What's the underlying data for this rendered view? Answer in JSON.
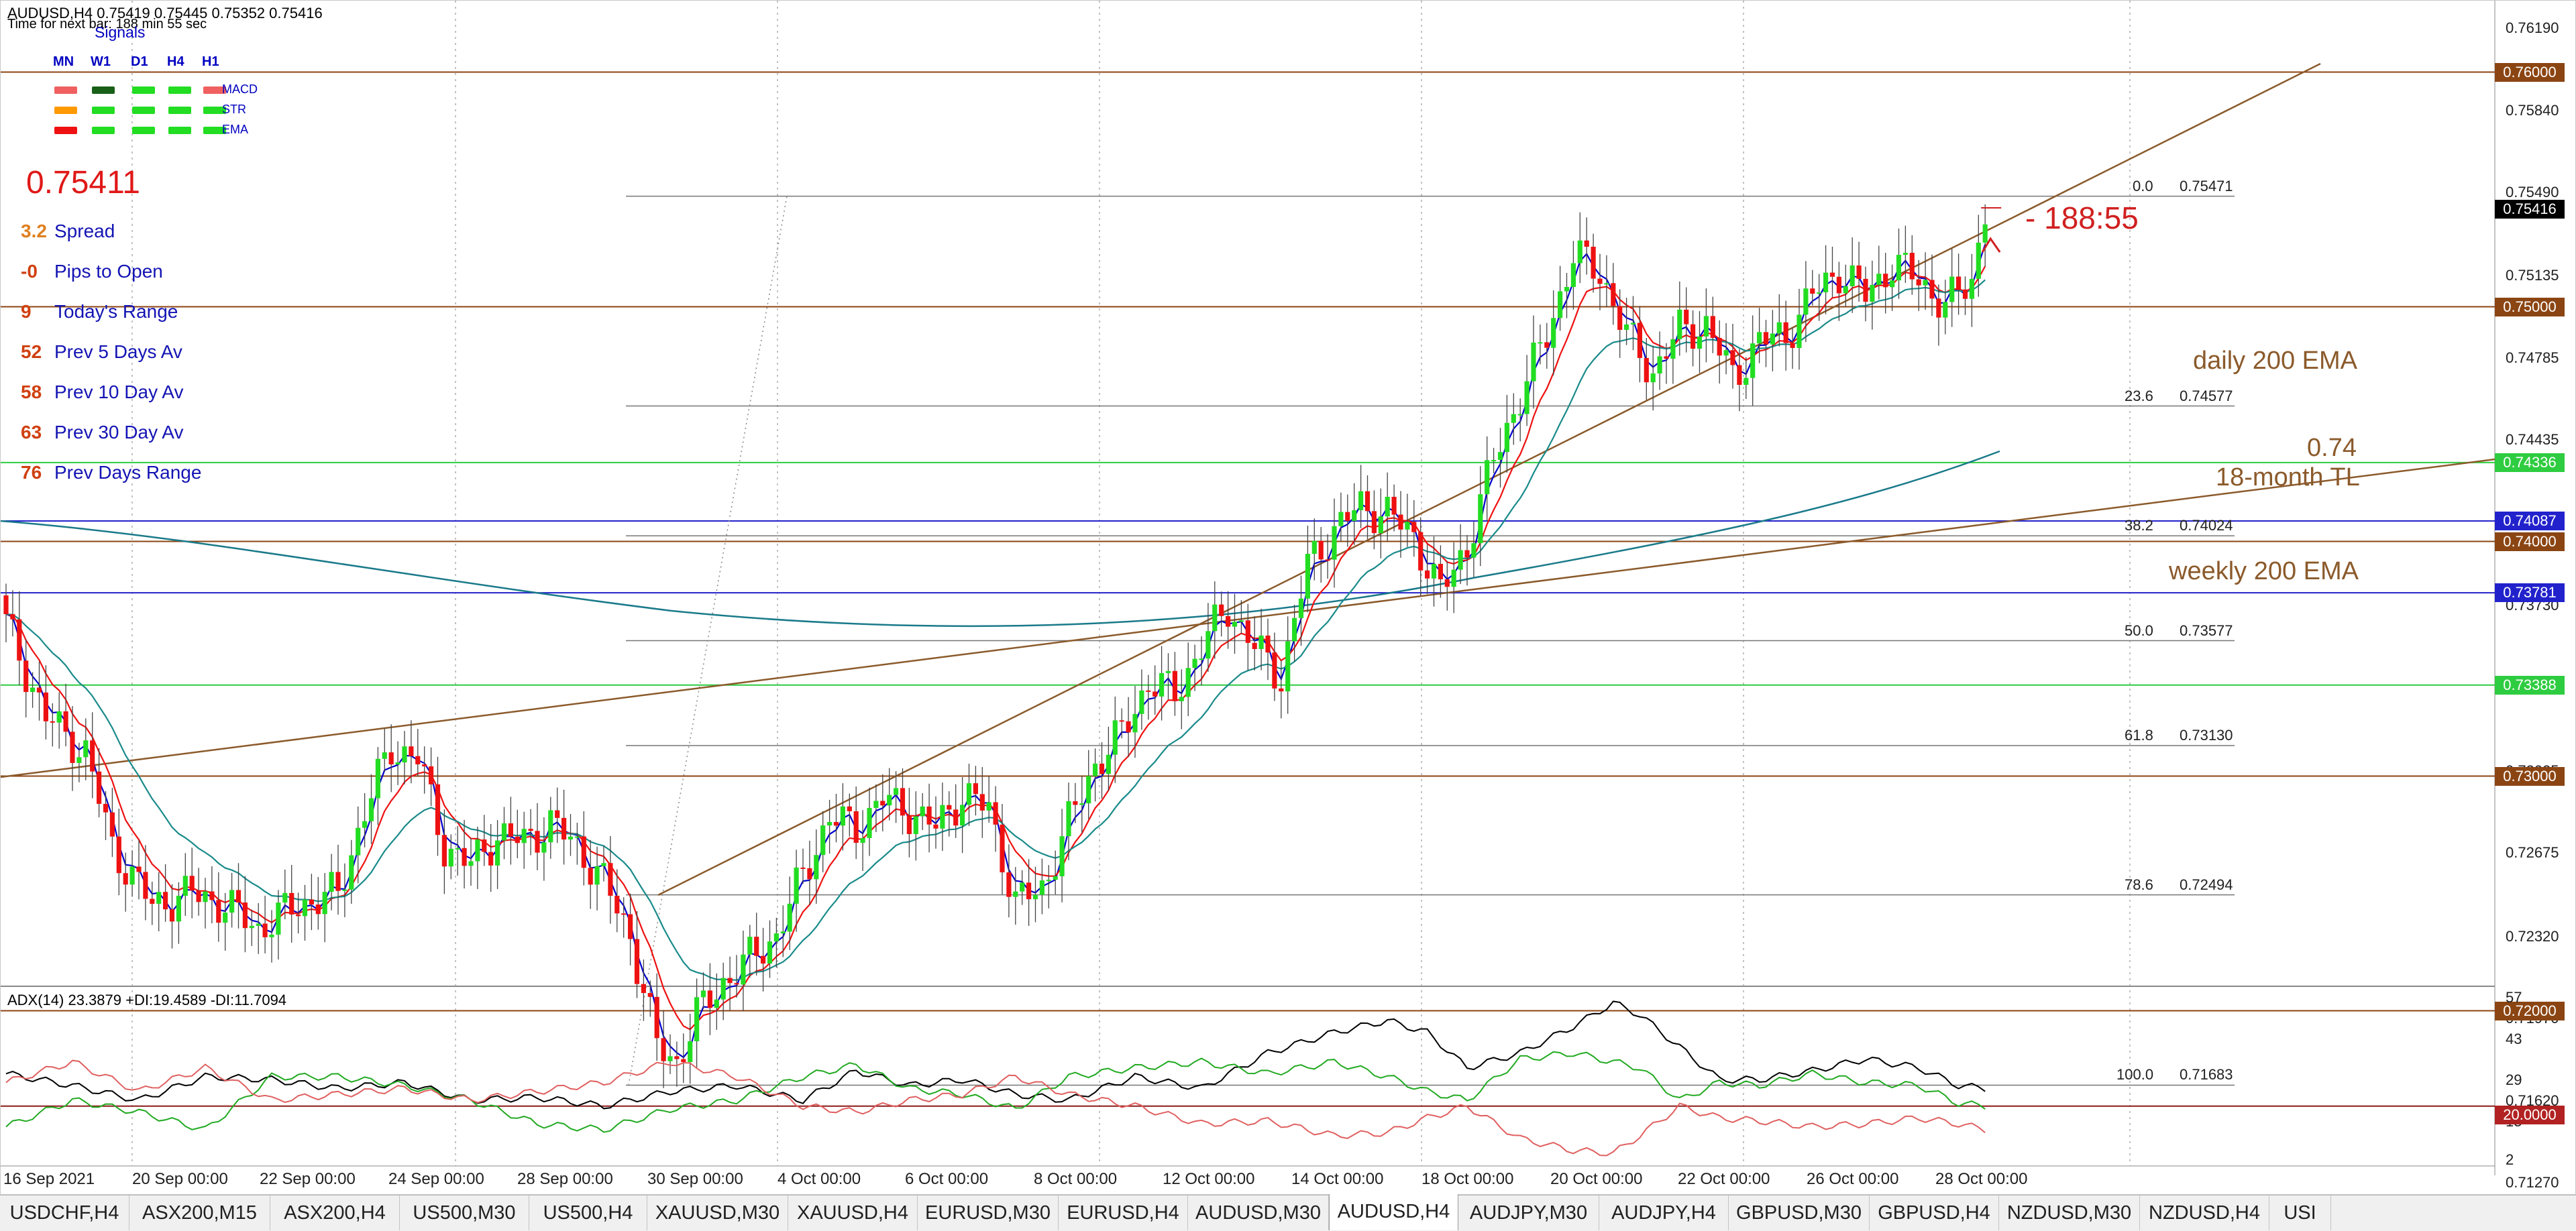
{
  "header": {
    "symbol_line": "AUDUSD,H4  0.75419 0.75445 0.75352 0.75416",
    "timer_line": "Time for next bar: 188 min 55 sec"
  },
  "signals": {
    "title": "Signals",
    "timeframes": [
      "MN",
      "W1",
      "D1",
      "H4",
      "H1"
    ],
    "rows": [
      {
        "name": "MACD",
        "colors": [
          "#f06060",
          "#186018",
          "#22dd22",
          "#22dd22",
          "#f06060"
        ]
      },
      {
        "name": "STR",
        "colors": [
          "#ff9900",
          "#22dd22",
          "#22dd22",
          "#22dd22",
          "#22dd22"
        ]
      },
      {
        "name": "EMA",
        "colors": [
          "#ee1111",
          "#22dd22",
          "#22dd22",
          "#22dd22",
          "#22dd22"
        ]
      }
    ]
  },
  "info_panel": {
    "current_price": "0.75411",
    "rows": [
      {
        "value": "3.2",
        "label": "Spread",
        "color": "#e08020"
      },
      {
        "value": "-0",
        "label": "Pips to Open",
        "color": "#d04010"
      },
      {
        "value": "9",
        "label": "Today's Range",
        "color": "#d04010"
      },
      {
        "value": "52",
        "label": "Prev 5 Days Av",
        "color": "#d04010"
      },
      {
        "value": "58",
        "label": "Prev 10 Day Av",
        "color": "#d04010"
      },
      {
        "value": "63",
        "label": "Prev 30 Day Av",
        "color": "#d04010"
      },
      {
        "value": "76",
        "label": "Prev Days Range",
        "color": "#d04010"
      }
    ]
  },
  "annotations": {
    "timer": "188:55",
    "daily_ema": "daily 200 EMA",
    "level_074": "0.74",
    "trendline": "18-month TL",
    "weekly_ema": "weekly 200 EMA"
  },
  "price_axis": {
    "ticks": [
      "0.76190",
      "0.75840",
      "0.75490",
      "0.75135",
      "0.74785",
      "0.74435",
      "0.74080",
      "0.73730",
      "0.73380",
      "0.73025",
      "0.72675",
      "0.72320",
      "0.71970",
      "0.71620",
      "0.71270"
    ],
    "badges": [
      {
        "text": "0.76000",
        "price": 0.76,
        "color": "#8b4513"
      },
      {
        "text": "0.75416",
        "price": 0.75416,
        "color": "#000000"
      },
      {
        "text": "0.75000",
        "price": 0.75,
        "color": "#8b4513"
      },
      {
        "text": "0.74336",
        "price": 0.74336,
        "color": "#2ecc40"
      },
      {
        "text": "0.74087",
        "price": 0.74087,
        "color": "#2222cc"
      },
      {
        "text": "0.74000",
        "price": 0.74,
        "color": "#8b4513"
      },
      {
        "text": "0.73781",
        "price": 0.73781,
        "color": "#2222cc"
      },
      {
        "text": "0.73388",
        "price": 0.73388,
        "color": "#2ecc40"
      },
      {
        "text": "0.73000",
        "price": 0.73,
        "color": "#8b4513"
      },
      {
        "text": "0.72000",
        "price": 0.72,
        "color": "#8b4513"
      }
    ]
  },
  "fibonacci": [
    {
      "level": "0.0",
      "price": "0.75471"
    },
    {
      "level": "23.6",
      "price": "0.74577"
    },
    {
      "level": "38.2",
      "price": "0.74024"
    },
    {
      "level": "50.0",
      "price": "0.73577"
    },
    {
      "level": "61.8",
      "price": "0.73130"
    },
    {
      "level": "78.6",
      "price": "0.72494"
    },
    {
      "level": "100.0",
      "price": "0.71683"
    }
  ],
  "time_axis": [
    "16 Sep 2021",
    "20 Sep 00:00",
    "22 Sep 00:00",
    "24 Sep 00:00",
    "28 Sep 00:00",
    "30 Sep 00:00",
    "4 Oct 00:00",
    "6 Oct 00:00",
    "8 Oct 00:00",
    "12 Oct 00:00",
    "14 Oct 00:00",
    "18 Oct 00:00",
    "20 Oct 00:00",
    "22 Oct 00:00",
    "26 Oct 00:00",
    "28 Oct 00:00"
  ],
  "adx_panel": {
    "label": "ADX(14) 23.3879 +DI:19.4589 -DI:11.7094",
    "ticks": [
      "57",
      "43",
      "29",
      "15",
      "2"
    ],
    "level_badge": "20.0000",
    "level_value": 20
  },
  "tabs": [
    {
      "label": "USDCHF,H4",
      "active": false
    },
    {
      "label": "ASX200,M15",
      "active": false
    },
    {
      "label": "ASX200,H4",
      "active": false
    },
    {
      "label": "US500,M30",
      "active": false
    },
    {
      "label": "US500,H4",
      "active": false
    },
    {
      "label": "XAUUSD,M30",
      "active": false
    },
    {
      "label": "XAUUSD,H4",
      "active": false
    },
    {
      "label": "EURUSD,M30",
      "active": false
    },
    {
      "label": "EURUSD,H4",
      "active": false
    },
    {
      "label": "AUDUSD,M30",
      "active": false
    },
    {
      "label": "AUDUSD,H4",
      "active": true
    },
    {
      "label": "AUDJPY,M30",
      "active": false
    },
    {
      "label": "AUDJPY,H4",
      "active": false
    },
    {
      "label": "GBPUSD,M30",
      "active": false
    },
    {
      "label": "GBPUSD,H4",
      "active": false
    },
    {
      "label": "NZDUSD,M30",
      "active": false
    },
    {
      "label": "NZDUSD,H4",
      "active": false
    },
    {
      "label": "USI",
      "active": false
    }
  ],
  "colors": {
    "bull_candle": "#22dd22",
    "bear_candle": "#ee1111",
    "fast_ma": "#0000cc",
    "mid_ma": "#ee1111",
    "slow_ma": "#1a8a8a",
    "ema200": "#1a7a8a",
    "trendline": "#8b5a2b",
    "adx_line": "#000000",
    "plus_di": "#22aa22",
    "minus_di": "#e06060"
  },
  "chart_data": {
    "type": "candlestick",
    "symbol": "AUDUSD",
    "timeframe": "H4",
    "ylim": [
      0.711,
      0.763
    ],
    "close_path": [
      [
        0,
        0.7365
      ],
      [
        6,
        0.7325
      ],
      [
        12,
        0.731
      ],
      [
        16,
        0.727
      ],
      [
        22,
        0.7245
      ],
      [
        28,
        0.725
      ],
      [
        33,
        0.7245
      ],
      [
        38,
        0.7235
      ],
      [
        44,
        0.7245
      ],
      [
        50,
        0.725
      ],
      [
        54,
        0.7285
      ],
      [
        58,
        0.7312
      ],
      [
        62,
        0.7308
      ],
      [
        66,
        0.727
      ],
      [
        70,
        0.7262
      ],
      [
        74,
        0.7275
      ],
      [
        78,
        0.7272
      ],
      [
        82,
        0.728
      ],
      [
        86,
        0.727
      ],
      [
        90,
        0.7255
      ],
      [
        94,
        0.7232
      ],
      [
        98,
        0.7185
      ],
      [
        101,
        0.7178
      ],
      [
        104,
        0.7198
      ],
      [
        108,
        0.7212
      ],
      [
        112,
        0.7222
      ],
      [
        116,
        0.7232
      ],
      [
        120,
        0.7258
      ],
      [
        124,
        0.7282
      ],
      [
        128,
        0.7278
      ],
      [
        132,
        0.729
      ],
      [
        136,
        0.7285
      ],
      [
        140,
        0.7278
      ],
      [
        144,
        0.7292
      ],
      [
        148,
        0.7286
      ],
      [
        152,
        0.7246
      ],
      [
        156,
        0.7252
      ],
      [
        160,
        0.728
      ],
      [
        164,
        0.7305
      ],
      [
        168,
        0.7318
      ],
      [
        172,
        0.734
      ],
      [
        176,
        0.7335
      ],
      [
        180,
        0.7355
      ],
      [
        184,
        0.7372
      ],
      [
        188,
        0.7355
      ],
      [
        192,
        0.7342
      ],
      [
        196,
        0.739
      ],
      [
        200,
        0.7405
      ],
      [
        204,
        0.7415
      ],
      [
        208,
        0.7412
      ],
      [
        212,
        0.7402
      ],
      [
        216,
        0.7378
      ],
      [
        220,
        0.7398
      ],
      [
        224,
        0.7435
      ],
      [
        228,
        0.7462
      ],
      [
        232,
        0.7488
      ],
      [
        236,
        0.7522
      ],
      [
        240,
        0.7515
      ],
      [
        244,
        0.7488
      ],
      [
        248,
        0.7472
      ],
      [
        252,
        0.749
      ],
      [
        256,
        0.7492
      ],
      [
        260,
        0.747
      ],
      [
        264,
        0.7485
      ],
      [
        268,
        0.7488
      ],
      [
        272,
        0.7505
      ],
      [
        276,
        0.7515
      ],
      [
        280,
        0.7505
      ],
      [
        284,
        0.7518
      ],
      [
        288,
        0.7512
      ],
      [
        292,
        0.75
      ],
      [
        296,
        0.7512
      ],
      [
        298,
        0.7541
      ]
    ],
    "adx_path": [
      [
        0,
        31
      ],
      [
        10,
        27
      ],
      [
        20,
        22
      ],
      [
        30,
        30
      ],
      [
        40,
        29
      ],
      [
        50,
        26
      ],
      [
        60,
        28
      ],
      [
        70,
        22
      ],
      [
        80,
        23
      ],
      [
        90,
        20
      ],
      [
        100,
        25
      ],
      [
        110,
        27
      ],
      [
        120,
        22
      ],
      [
        128,
        32
      ],
      [
        136,
        27
      ],
      [
        144,
        29
      ],
      [
        152,
        24
      ],
      [
        160,
        22
      ],
      [
        170,
        30
      ],
      [
        180,
        26
      ],
      [
        190,
        38
      ],
      [
        200,
        45
      ],
      [
        208,
        49
      ],
      [
        214,
        45
      ],
      [
        220,
        33
      ],
      [
        228,
        38
      ],
      [
        236,
        47
      ],
      [
        242,
        55
      ],
      [
        246,
        51
      ],
      [
        252,
        40
      ],
      [
        258,
        29
      ],
      [
        264,
        29
      ],
      [
        272,
        32
      ],
      [
        280,
        36
      ],
      [
        288,
        33
      ],
      [
        294,
        27
      ],
      [
        298,
        26
      ]
    ],
    "plus_di_path": [
      [
        0,
        13
      ],
      [
        10,
        22
      ],
      [
        20,
        18
      ],
      [
        30,
        12
      ],
      [
        40,
        30
      ],
      [
        50,
        30
      ],
      [
        60,
        27
      ],
      [
        70,
        22
      ],
      [
        80,
        14
      ],
      [
        90,
        12
      ],
      [
        100,
        19
      ],
      [
        110,
        22
      ],
      [
        120,
        30
      ],
      [
        128,
        34
      ],
      [
        136,
        26
      ],
      [
        144,
        24
      ],
      [
        152,
        19
      ],
      [
        160,
        30
      ],
      [
        170,
        33
      ],
      [
        180,
        35
      ],
      [
        190,
        31
      ],
      [
        200,
        35
      ],
      [
        208,
        30
      ],
      [
        214,
        25
      ],
      [
        220,
        22
      ],
      [
        228,
        36
      ],
      [
        236,
        38
      ],
      [
        242,
        35
      ],
      [
        246,
        33
      ],
      [
        252,
        22
      ],
      [
        258,
        28
      ],
      [
        264,
        27
      ],
      [
        272,
        31
      ],
      [
        280,
        28
      ],
      [
        288,
        27
      ],
      [
        294,
        21
      ],
      [
        298,
        20
      ]
    ],
    "minus_di_path": [
      [
        0,
        28
      ],
      [
        10,
        35
      ],
      [
        20,
        25
      ],
      [
        30,
        33
      ],
      [
        40,
        22
      ],
      [
        50,
        24
      ],
      [
        60,
        26
      ],
      [
        70,
        22
      ],
      [
        80,
        25
      ],
      [
        90,
        28
      ],
      [
        100,
        35
      ],
      [
        110,
        30
      ],
      [
        120,
        20
      ],
      [
        128,
        18
      ],
      [
        136,
        22
      ],
      [
        144,
        24
      ],
      [
        152,
        30
      ],
      [
        160,
        24
      ],
      [
        170,
        20
      ],
      [
        180,
        14
      ],
      [
        190,
        15
      ],
      [
        200,
        10
      ],
      [
        208,
        11
      ],
      [
        214,
        16
      ],
      [
        220,
        20
      ],
      [
        228,
        9
      ],
      [
        236,
        5
      ],
      [
        242,
        4
      ],
      [
        246,
        10
      ],
      [
        252,
        20
      ],
      [
        258,
        16
      ],
      [
        264,
        15
      ],
      [
        272,
        13
      ],
      [
        280,
        14
      ],
      [
        288,
        16
      ],
      [
        294,
        14
      ],
      [
        298,
        12
      ]
    ]
  }
}
